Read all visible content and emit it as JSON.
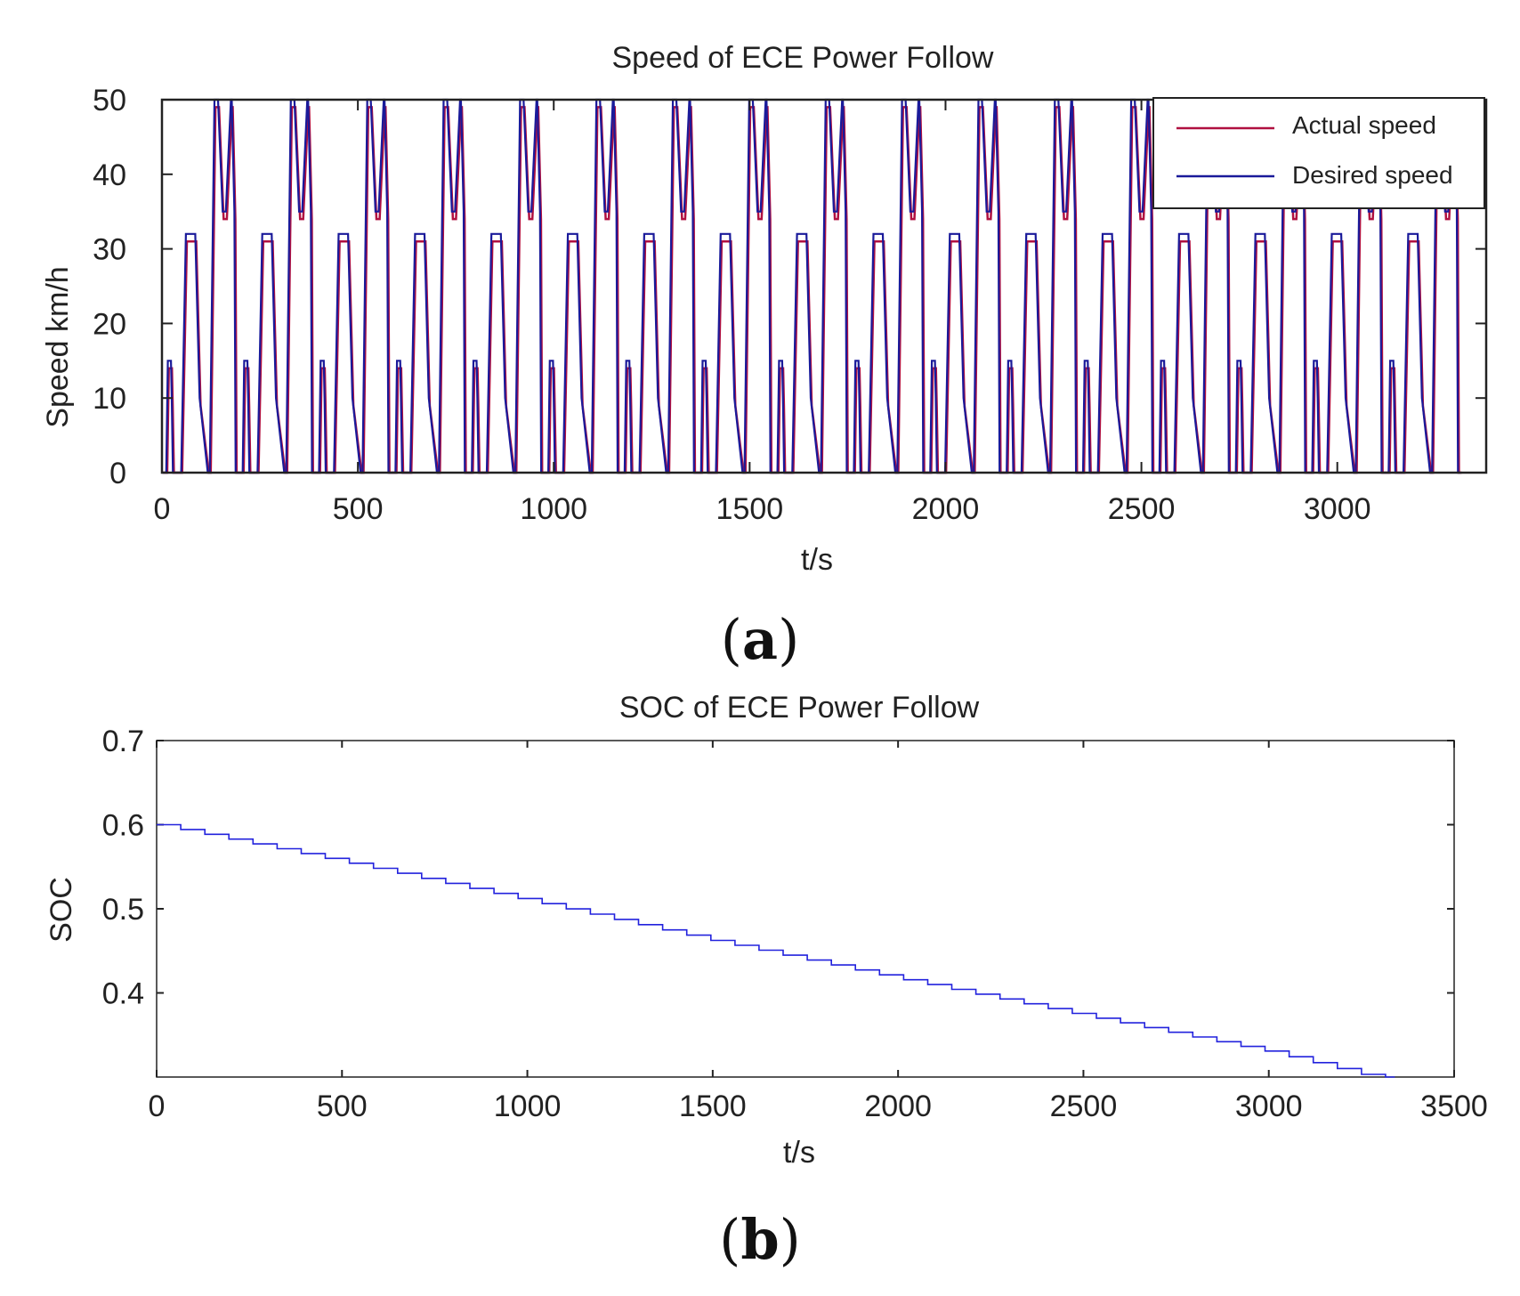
{
  "chart_data": [
    {
      "type": "line",
      "panel": "a",
      "title": "Speed of ECE Power Follow",
      "xlabel": "t/s",
      "ylabel": "Speed  km/h",
      "xlim": [
        0,
        3380
      ],
      "ylim": [
        0,
        50
      ],
      "xticks": [
        0,
        500,
        1000,
        1500,
        2000,
        2500,
        3000
      ],
      "xtick_labels": [
        "0",
        "500",
        "1000",
        "1500",
        "2000",
        "2500",
        "3000"
      ],
      "yticks": [
        0,
        10,
        20,
        30,
        40,
        50
      ],
      "ytick_labels": [
        "0",
        "10",
        "20",
        "30",
        "40",
        "50"
      ],
      "legend_position": "top-right",
      "cycle_period_s": 195,
      "num_cycles": 17,
      "cycle_profile": {
        "t": [
          0,
          11,
          15,
          23,
          25,
          28,
          49,
          61,
          85,
          96,
          117,
          122,
          134,
          143,
          155,
          163,
          176,
          178,
          185,
          188,
          195
        ],
        "v": [
          0,
          0,
          15,
          15,
          10,
          0,
          0,
          32,
          32,
          10,
          0,
          0,
          50,
          50,
          35,
          35,
          50,
          50,
          35,
          0,
          0
        ]
      },
      "series": [
        {
          "name": "Actual speed",
          "color": "#b01040"
        },
        {
          "name": "Desired speed",
          "color": "#1a1a9a"
        }
      ]
    },
    {
      "type": "line",
      "panel": "b",
      "title": "SOC of ECE Power Follow",
      "xlabel": "t/s",
      "ylabel": "SOC",
      "xlim": [
        0,
        3500
      ],
      "ylim": [
        0.3,
        0.7
      ],
      "xticks": [
        0,
        500,
        1000,
        1500,
        2000,
        2500,
        3000,
        3500
      ],
      "xtick_labels": [
        "0",
        "500",
        "1000",
        "1500",
        "2000",
        "2500",
        "3000",
        "3500"
      ],
      "yticks": [
        0.4,
        0.5,
        0.6,
        0.7
      ],
      "ytick_labels": [
        "0.4",
        "0.5",
        "0.6",
        "0.7"
      ],
      "series": [
        {
          "name": "SOC",
          "color": "#2222dd",
          "x": [
            0,
            500,
            1000,
            1500,
            2000,
            2500,
            3000,
            3280,
            3340
          ],
          "y": [
            0.6,
            0.556,
            0.51,
            0.462,
            0.417,
            0.373,
            0.33,
            0.3,
            0.3
          ]
        }
      ]
    }
  ],
  "panel_labels": {
    "a": "a",
    "b": "b"
  }
}
